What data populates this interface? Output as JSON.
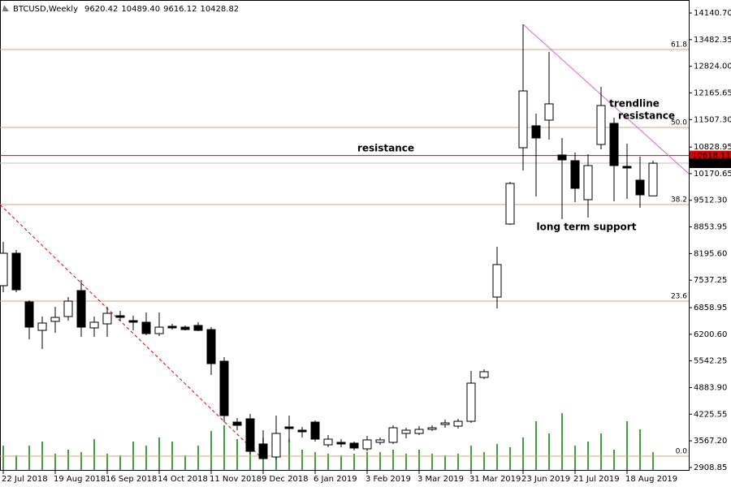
{
  "chart_data": {
    "type": "candlestick",
    "title": "BTCUSD,Weekly",
    "header_ohlc": [
      9620.42,
      {
        "value": 10489.4,
        "label": "10489.40"
      },
      9616.12,
      10428.82
    ],
    "categories": [
      "22 Jul 2018",
      null,
      null,
      null,
      "19 Aug 2018",
      null,
      null,
      null,
      "16 Sep 2018",
      null,
      null,
      null,
      "14 Oct 2018",
      null,
      null,
      null,
      "11 Nov 2018",
      null,
      null,
      null,
      "9 Dec 2018",
      null,
      null,
      null,
      "6 Jan 2019",
      null,
      null,
      null,
      "3 Feb 2019",
      null,
      null,
      null,
      "3 Mar 2019",
      null,
      null,
      null,
      "31 Mar 2019",
      null,
      null,
      null,
      "23 Jun 2019",
      null,
      null,
      null,
      "21 Jul 2019",
      null,
      null,
      null,
      "18 Aug 2019",
      null,
      null
    ],
    "open": [
      7401,
      8203,
      7000,
      6297,
      6518,
      6638,
      7280,
      6358,
      6458,
      6659,
      6538,
      6498,
      6217,
      6398,
      6377,
      6418,
      6317,
      5535,
      4030,
      4111,
      3489,
      3168,
      3910,
      3830,
      4030,
      3469,
      3529,
      3509,
      3369,
      3529,
      3529,
      3750,
      3750,
      3850,
      3970,
      3930,
      4050,
      5134,
      7120,
      8925,
      10811,
      11353,
      11493,
      10631,
      10490,
      9527,
      10891,
      11413,
      10350,
      10009,
      9620.42
    ],
    "high": [
      8484,
      8283,
      7040,
      6638,
      6879,
      7120,
      7541,
      6638,
      6879,
      6779,
      6659,
      6739,
      6739,
      6458,
      6418,
      6498,
      6377,
      5636,
      4131,
      4231,
      3830,
      4191,
      4191,
      3910,
      4070,
      3710,
      3609,
      3549,
      3690,
      3649,
      3950,
      3890,
      3930,
      3950,
      4090,
      4111,
      5295,
      5335,
      8364,
      9968,
      13860,
      11654,
      13178,
      11052,
      10691,
      10651,
      12315,
      11554,
      10912,
      10590,
      10489.4
    ],
    "low": [
      7240,
      7240,
      6077,
      5836,
      6237,
      6538,
      6137,
      6137,
      6137,
      6538,
      6297,
      6177,
      6157,
      6317,
      6297,
      6277,
      5194,
      4030,
      3830,
      3228,
      3108,
      3108,
      3529,
      3649,
      3549,
      3408,
      3408,
      3328,
      3308,
      3469,
      3489,
      3629,
      3710,
      3810,
      3890,
      3870,
      4010,
      5094,
      6839,
      8905,
      10250,
      9607,
      11012,
      9045,
      9467,
      9086,
      10771,
      9487,
      9547,
      9326,
      9616.12
    ],
    "close": [
      8203,
      7300,
      6377,
      6478,
      6618,
      7020,
      6377,
      6498,
      6719,
      6618,
      6498,
      6217,
      6377,
      6358,
      6317,
      6297,
      5475,
      4191,
      3950,
      3308,
      3128,
      3750,
      3870,
      3790,
      3609,
      3609,
      3489,
      3389,
      3590,
      3590,
      3890,
      3830,
      3850,
      3890,
      4010,
      4050,
      4993,
      5275,
      7923,
      9928,
      12215,
      11052,
      11895,
      10510,
      9808,
      10370,
      11854,
      10370,
      10310,
      9647,
      10428.82
    ],
    "volume": [
      30,
      18,
      30,
      35,
      20,
      25,
      22,
      38,
      20,
      18,
      35,
      30,
      40,
      35,
      18,
      30,
      48,
      55,
      38,
      45,
      40,
      30,
      38,
      25,
      22,
      20,
      18,
      20,
      22,
      22,
      25,
      20,
      25,
      20,
      18,
      20,
      30,
      22,
      32,
      28,
      40,
      60,
      45,
      70,
      30,
      35,
      45,
      25,
      60,
      50,
      22
    ],
    "volume_color": "#008000",
    "ylim": [
      2827,
      14462
    ],
    "yticks": [
      {
        "value": 14140.7,
        "label": "14140.70"
      },
      13482.35,
      {
        "value": 12824,
        "label": "12824.00"
      },
      12165.65,
      {
        "value": 11507.3,
        "label": "11507.30"
      },
      10828.95,
      10170.65,
      {
        "value": 9512.3,
        "label": "9512.30"
      },
      8853.95,
      {
        "value": 8195.6,
        "label": "8195.60"
      },
      7537.25,
      6858.95,
      {
        "value": 6200.6,
        "label": "6200.60"
      },
      5542.25,
      {
        "value": 4883.9,
        "label": "4883.90"
      },
      4225.55,
      {
        "value": 3567.2,
        "label": "3567.20"
      },
      2908.85
    ],
    "fib_color": "#d2a679",
    "fib_levels": [
      {
        "label": "61.8",
        "value": 13238
      },
      {
        "label": "50.0",
        "value": 11312
      },
      {
        "label": "38.2",
        "value": 9407
      },
      {
        "label": "23.6",
        "value": 7020
      },
      {
        "label": "0.0",
        "value": 3188
      }
    ],
    "price_lines": [
      {
        "value": 10618.11,
        "color": "#e00000"
      },
      {
        "value": 10428.82,
        "color": "#000000"
      }
    ],
    "trendlines": [
      {
        "x": [
          40,
          52.75
        ],
        "y": [
          13860,
          10169
        ],
        "color": "#e060e0",
        "dashed": false
      },
      {
        "x": [
          -0.25,
          19.75
        ],
        "y": [
          9407,
          3188
        ],
        "color": "#e00000",
        "dashed": true
      }
    ],
    "annotations": [
      {
        "text": "resistance",
        "color": "#e00000"
      },
      {
        "text": "trendline",
        "color": "#e00000"
      },
      {
        "text": "resistance",
        "color": "#e00000"
      },
      {
        "text": "long term support",
        "color": "#000000"
      }
    ]
  }
}
